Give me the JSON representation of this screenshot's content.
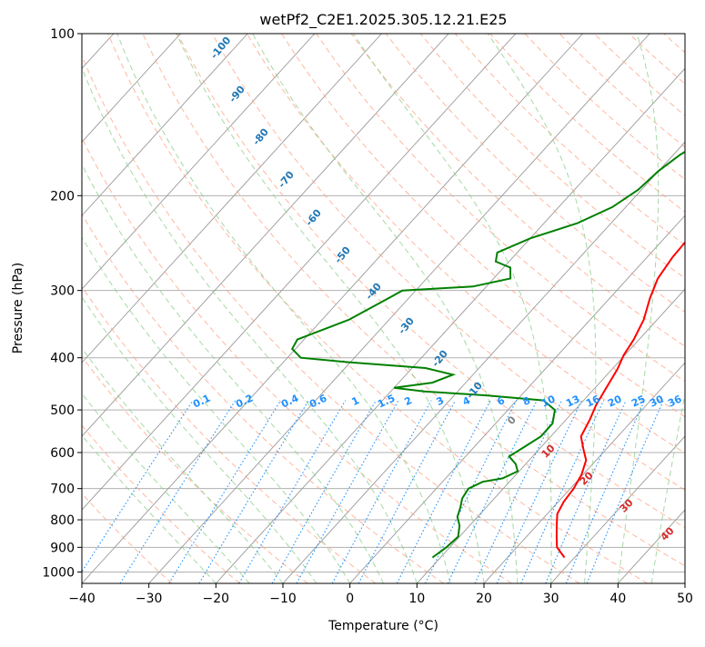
{
  "chart_data": {
    "type": "line",
    "title": "wetPf2_C2E1.2025.305.12.21.E25",
    "xlabel": "Temperature (°C)",
    "ylabel": "Pressure (hPa)",
    "xlim": [
      -40,
      50
    ],
    "ylim": [
      1050,
      100
    ],
    "x_ticks": [
      -40,
      -30,
      -20,
      -10,
      0,
      10,
      20,
      30,
      40,
      50
    ],
    "y_ticks": [
      100,
      200,
      300,
      400,
      500,
      600,
      700,
      800,
      900,
      1000
    ],
    "colors": {
      "temperature": "#ff0000",
      "dewpoint": "#008000",
      "dry_adiabat": "#ff9f80",
      "moist_adiabat": "#8fcf8f",
      "mixing_ratio": "#1e90ff",
      "isotherm": "#999999"
    },
    "series": [
      {
        "name": "temperature",
        "points": [
          [
            28.5,
            940
          ],
          [
            26.0,
            900
          ],
          [
            24.5,
            860
          ],
          [
            23.0,
            820
          ],
          [
            21.5,
            780
          ],
          [
            20.8,
            740
          ],
          [
            20.5,
            700
          ],
          [
            19.8,
            660
          ],
          [
            18.5,
            620
          ],
          [
            16.5,
            590
          ],
          [
            14.5,
            560
          ],
          [
            13.5,
            520
          ],
          [
            12.5,
            490
          ],
          [
            11.8,
            460
          ],
          [
            10.8,
            420
          ],
          [
            9.8,
            395
          ],
          [
            9.2,
            370
          ],
          [
            8.0,
            340
          ],
          [
            6.0,
            310
          ],
          [
            4.5,
            285
          ],
          [
            3.8,
            260
          ],
          [
            3.5,
            230
          ],
          [
            3.5,
            200
          ],
          [
            3.8,
            180
          ],
          [
            3.5,
            165
          ],
          [
            4.5,
            150
          ],
          [
            7.0,
            135
          ],
          [
            10.0,
            122
          ],
          [
            12.0,
            112
          ],
          [
            12.0,
            105
          ],
          [
            11.5,
            100
          ]
        ]
      },
      {
        "name": "dewpoint",
        "points": [
          [
            8.8,
            940
          ],
          [
            9.5,
            900
          ],
          [
            9.8,
            860
          ],
          [
            8.5,
            820
          ],
          [
            7.0,
            790
          ],
          [
            6.2,
            760
          ],
          [
            5.2,
            730
          ],
          [
            4.8,
            700
          ],
          [
            6.0,
            680
          ],
          [
            8.5,
            670
          ],
          [
            9.8,
            650
          ],
          [
            8.5,
            630
          ],
          [
            6.5,
            610
          ],
          [
            7.5,
            585
          ],
          [
            8.5,
            560
          ],
          [
            8.5,
            530
          ],
          [
            7.0,
            500
          ],
          [
            4.0,
            480
          ],
          [
            -5.0,
            470
          ],
          [
            -15.0,
            462
          ],
          [
            -20.0,
            455
          ],
          [
            -15.0,
            445
          ],
          [
            -13.0,
            430
          ],
          [
            -18.0,
            418
          ],
          [
            -30.0,
            408
          ],
          [
            -38.0,
            400
          ],
          [
            -40.5,
            385
          ],
          [
            -41.0,
            370
          ],
          [
            -36.0,
            340
          ],
          [
            -33.0,
            310
          ],
          [
            -32.0,
            300
          ],
          [
            -22.0,
            295
          ],
          [
            -17.5,
            285
          ],
          [
            -19.0,
            272
          ],
          [
            -22.0,
            265
          ],
          [
            -23.0,
            255
          ],
          [
            -20.0,
            240
          ],
          [
            -15.0,
            225
          ],
          [
            -12.0,
            210
          ],
          [
            -10.5,
            195
          ],
          [
            -10.0,
            180
          ],
          [
            -9.0,
            168
          ],
          [
            -7.0,
            155
          ],
          [
            -6.0,
            140
          ],
          [
            -5.5,
            125
          ],
          [
            -6.0,
            115
          ],
          [
            -3.0,
            108
          ],
          [
            1.5,
            103
          ],
          [
            3.5,
            100
          ]
        ]
      }
    ],
    "dry_adiabat_labels": [
      "-100",
      "-90",
      "-80",
      "-70",
      "-60",
      "-50",
      "-40",
      "-30",
      "-20",
      "-10"
    ],
    "mixing_ratio_labels": [
      "0.1",
      "0.2",
      "0.4",
      "0.6",
      "1",
      "1.5",
      "2",
      "3",
      "4",
      "6",
      "8",
      "10",
      "13",
      "16",
      "20",
      "25",
      "30",
      "36"
    ],
    "moist_adiabat_labels": [
      "0",
      "10",
      "20",
      "30",
      "40"
    ]
  }
}
